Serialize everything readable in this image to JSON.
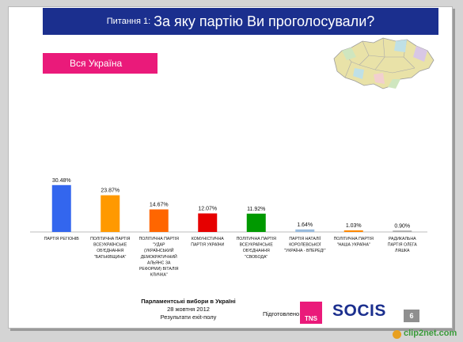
{
  "header": {
    "prefix": "Питання 1:",
    "question": "За яку партію Ви проголосували?"
  },
  "region_button": {
    "label": "Вся Україна"
  },
  "chart_data": {
    "type": "bar",
    "categories": [
      [
        "ПАРТІЯ РЕГІОНІВ"
      ],
      [
        "ПОЛІТИЧНА ПАРТІЯ",
        "ВСЕУКРАЇНСЬКЕ",
        "ОБ'ЄДНАННЯ",
        "\"БАТЬКІВЩИНА\""
      ],
      [
        "ПОЛІТИЧНА ПАРТІЯ",
        "\"УДАР",
        "(УКРАЇНСЬКИЙ",
        "ДЕМОКРАТИЧНИЙ",
        "АЛЬЯНС ЗА",
        "РЕФОРМИ) ВІТАЛІЯ",
        "КЛИЧКА\""
      ],
      [
        "КОМУНІСТИЧНА",
        "ПАРТІЯ УКРАЇНИ"
      ],
      [
        "ПОЛІТИЧНА ПАРТІЯ",
        "ВСЕУКРАЇНСЬКЕ",
        "ОБ'ЄДНАННЯ",
        "\"СВОБОДА\""
      ],
      [
        "ПАРТІЯ НАТАЛІЇ",
        "КОРОЛЕВСЬКОЇ",
        "\"УКРАЇНА - ВПЕРЕД!\""
      ],
      [
        "ПОЛІТИЧНА ПАРТІЯ",
        "\"НАША УКРАЇНА\""
      ],
      [
        "РАДИКАЛЬНА",
        "ПАРТІЯ ОЛЕГА",
        "ЛЯШКА"
      ]
    ],
    "values": [
      30.48,
      23.87,
      14.67,
      12.07,
      11.92,
      1.64,
      1.03,
      0.9
    ],
    "labels": [
      "30.48%",
      "23.87%",
      "14.67%",
      "12.07%",
      "11.92%",
      "1.64%",
      "1.03%",
      "0.90%"
    ],
    "colors": [
      "#3366ee",
      "#ff9900",
      "#ff6600",
      "#e60000",
      "#009900",
      "#99bbdd",
      "#ff8800",
      "#aaaaaa"
    ],
    "ylim": [
      0,
      35
    ]
  },
  "footer": {
    "title": "Парламентські вибори в Україні",
    "date": "28 жовтня 2012",
    "results": "Результати exit-полу",
    "prepared": "Підготовлено",
    "tns": "TNS",
    "socis": "SOCIS",
    "page": "6"
  },
  "watermark": "clip2net.com"
}
